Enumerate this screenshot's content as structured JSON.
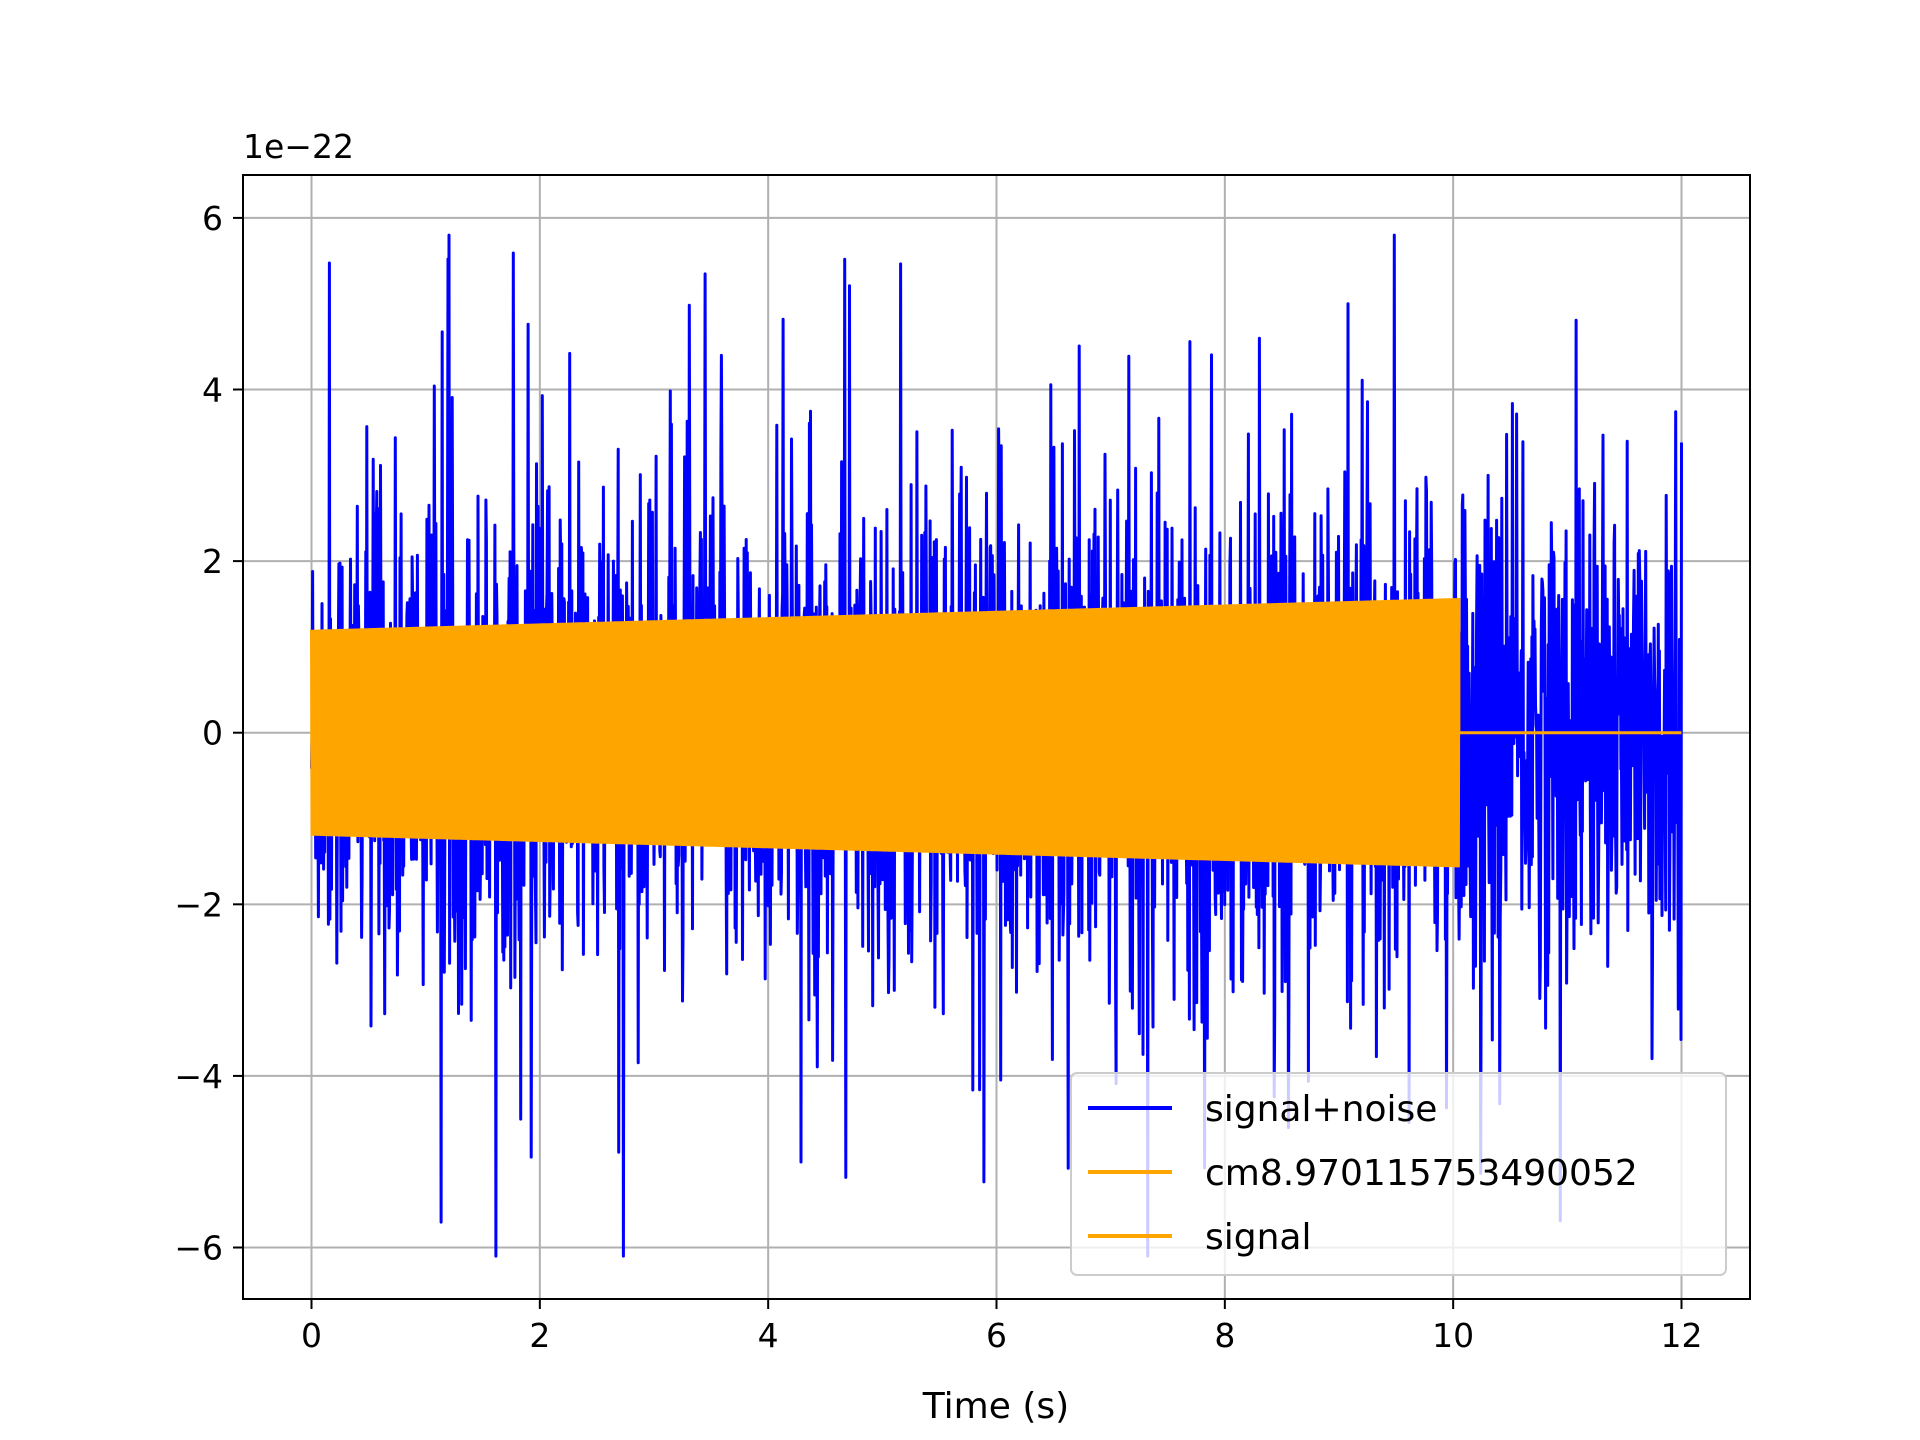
{
  "chart_data": {
    "type": "line",
    "title": "",
    "xlabel": "Time (s)",
    "ylabel": "",
    "y_scale_label": "1e−22",
    "y_scale_factor": 1e-22,
    "xlim": [
      -0.6,
      12.6
    ],
    "ylim": [
      -6.6,
      6.5
    ],
    "x_ticks": [
      0,
      2,
      4,
      6,
      8,
      10,
      12
    ],
    "x_tick_labels": [
      "0",
      "2",
      "4",
      "6",
      "8",
      "10",
      "12"
    ],
    "y_ticks": [
      -6,
      -4,
      -2,
      0,
      2,
      4,
      6
    ],
    "y_tick_labels": [
      "−6",
      "−4",
      "−2",
      "0",
      "2",
      "4",
      "6"
    ],
    "grid": true,
    "legend_position": "lower-right",
    "series": [
      {
        "name": "signal+noise",
        "color": "#0000ff",
        "description": "noisy strain time series sampled from 0 to 12 s",
        "x_range": [
          0,
          12
        ],
        "envelope_max": 5.8,
        "envelope_min": -6.1,
        "typical_amplitude": 2.5
      },
      {
        "name": "cm8.970115753490052",
        "color": "#ffa500",
        "description": "sinusoidal chirp signal",
        "x_range": [
          0,
          10.05
        ],
        "amplitude_start": 1.2,
        "amplitude_end": 1.57,
        "after_end_value": 0,
        "x_end": 12
      },
      {
        "name": "signal",
        "color": "#ffa500",
        "description": "same chirp signal drawn again in legend",
        "x_range": [
          0,
          10.05
        ]
      }
    ],
    "legend": [
      "signal+noise",
      "cm8.970115753490052",
      "signal"
    ]
  }
}
